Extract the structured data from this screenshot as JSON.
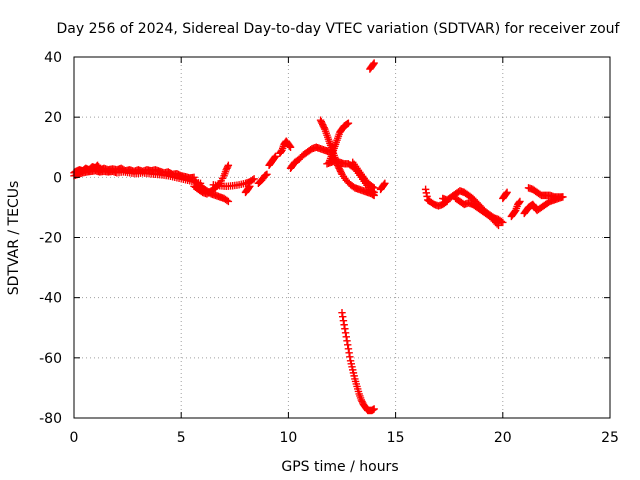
{
  "chart_data": {
    "type": "scatter",
    "title": "Day 256 of 2024, Sidereal Day-to-day VTEC variation (SDTVAR) for receiver zouf",
    "xlabel": "GPS time / hours",
    "ylabel": "SDTVAR / TECUs",
    "xlim": [
      0,
      25
    ],
    "ylim": [
      -80,
      40
    ],
    "xticks": [
      0,
      5,
      10,
      15,
      20,
      25
    ],
    "yticks": [
      -80,
      -60,
      -40,
      -20,
      0,
      20,
      40
    ],
    "xtick_labels": [
      "0",
      "5",
      "10",
      "15",
      "20",
      "25"
    ],
    "ytick_labels": [
      "-80",
      "-60",
      "-40",
      "-20",
      "0",
      "20",
      "40"
    ],
    "grid": true,
    "marker": "+",
    "color": "#ff0000",
    "series": [
      {
        "name": "arc-main",
        "points": [
          [
            0.0,
            1.5
          ],
          [
            0.1,
            2.0
          ],
          [
            0.25,
            2.5
          ],
          [
            0.4,
            2.2
          ],
          [
            0.55,
            3.0
          ],
          [
            0.7,
            2.5
          ],
          [
            0.85,
            3.5
          ],
          [
            1.0,
            3.2
          ],
          [
            1.1,
            4.0
          ],
          [
            1.25,
            2.5
          ],
          [
            1.4,
            3.0
          ],
          [
            1.6,
            2.5
          ],
          [
            1.8,
            2.8
          ],
          [
            2.0,
            2.5
          ],
          [
            2.2,
            3.0
          ],
          [
            2.4,
            2.2
          ],
          [
            2.6,
            2.5
          ],
          [
            2.8,
            2.0
          ],
          [
            3.0,
            2.5
          ],
          [
            3.2,
            2.0
          ],
          [
            3.4,
            2.5
          ],
          [
            3.6,
            2.2
          ],
          [
            3.8,
            2.5
          ],
          [
            4.0,
            2.0
          ],
          [
            4.2,
            1.5
          ],
          [
            4.4,
            1.8
          ],
          [
            4.6,
            1.0
          ],
          [
            4.8,
            1.2
          ],
          [
            5.0,
            0.5
          ],
          [
            5.2,
            0.2
          ],
          [
            5.4,
            -0.2
          ],
          [
            5.6,
            0.0
          ]
        ]
      },
      {
        "name": "arc-main-lower",
        "points": [
          [
            0.0,
            0.5
          ],
          [
            0.2,
            1.0
          ],
          [
            0.4,
            1.5
          ],
          [
            0.6,
            1.8
          ],
          [
            0.8,
            2.0
          ],
          [
            1.0,
            2.2
          ],
          [
            1.2,
            1.8
          ],
          [
            1.4,
            2.0
          ],
          [
            1.6,
            1.8
          ],
          [
            1.8,
            2.0
          ],
          [
            2.0,
            1.5
          ],
          [
            2.3,
            1.8
          ],
          [
            2.6,
            1.5
          ],
          [
            2.9,
            1.2
          ],
          [
            3.2,
            1.5
          ],
          [
            3.5,
            1.2
          ],
          [
            3.8,
            1.0
          ],
          [
            4.1,
            0.8
          ],
          [
            4.4,
            0.5
          ],
          [
            4.7,
            0.0
          ],
          [
            5.0,
            -0.5
          ],
          [
            5.3,
            -1.0
          ],
          [
            5.6,
            -1.5
          ],
          [
            5.9,
            -2.0
          ]
        ]
      },
      {
        "name": "arc-dip-6h",
        "points": [
          [
            5.6,
            -1.0
          ],
          [
            5.8,
            -2.5
          ],
          [
            6.0,
            -3.5
          ],
          [
            6.2,
            -4.5
          ],
          [
            6.4,
            -5.5
          ],
          [
            6.6,
            -6.0
          ],
          [
            6.8,
            -6.5
          ],
          [
            7.0,
            -7.0
          ],
          [
            7.2,
            -8.0
          ]
        ]
      },
      {
        "name": "arc-7h",
        "points": [
          [
            5.6,
            -3.0
          ],
          [
            5.8,
            -4.0
          ],
          [
            6.0,
            -5.0
          ],
          [
            6.2,
            -5.5
          ],
          [
            6.4,
            -4.5
          ],
          [
            6.6,
            -3.5
          ],
          [
            6.8,
            -2.0
          ],
          [
            7.0,
            0.5
          ],
          [
            7.1,
            2.5
          ],
          [
            7.2,
            4.0
          ]
        ]
      },
      {
        "name": "arc-8h",
        "points": [
          [
            6.5,
            -2.5
          ],
          [
            6.8,
            -2.8
          ],
          [
            7.1,
            -3.0
          ],
          [
            7.4,
            -2.8
          ],
          [
            7.7,
            -2.5
          ],
          [
            8.0,
            -2.0
          ],
          [
            8.2,
            -1.5
          ],
          [
            8.4,
            -0.5
          ]
        ]
      },
      {
        "name": "arc-8h-b",
        "points": [
          [
            8.0,
            -5.0
          ],
          [
            8.1,
            -4.0
          ],
          [
            8.2,
            -3.0
          ]
        ]
      },
      {
        "name": "arc-8.7h",
        "points": [
          [
            8.6,
            -2.0
          ],
          [
            8.75,
            -1.0
          ],
          [
            8.9,
            0.5
          ],
          [
            9.0,
            1.0
          ]
        ]
      },
      {
        "name": "arc-9h",
        "points": [
          [
            9.1,
            4.0
          ],
          [
            9.2,
            5.0
          ],
          [
            9.3,
            6.0
          ],
          [
            9.4,
            7.0
          ]
        ]
      },
      {
        "name": "arc-10h",
        "points": [
          [
            9.6,
            8.0
          ],
          [
            9.7,
            9.0
          ],
          [
            9.8,
            11.0
          ],
          [
            9.9,
            12.0
          ],
          [
            10.0,
            11.0
          ],
          [
            10.1,
            10.0
          ]
        ]
      },
      {
        "name": "arc-10-11h",
        "points": [
          [
            10.1,
            3.0
          ],
          [
            10.2,
            4.0
          ],
          [
            10.3,
            5.0
          ],
          [
            10.5,
            6.0
          ],
          [
            10.7,
            7.5
          ],
          [
            10.9,
            8.5
          ],
          [
            11.1,
            9.5
          ],
          [
            11.3,
            10.0
          ],
          [
            11.5,
            9.5
          ],
          [
            11.7,
            9.0
          ],
          [
            11.9,
            8.5
          ]
        ]
      },
      {
        "name": "arc-spike-11.5h",
        "points": [
          [
            11.5,
            19.0
          ],
          [
            11.6,
            17.5
          ],
          [
            11.7,
            16.0
          ],
          [
            11.8,
            14.0
          ],
          [
            11.9,
            12.0
          ],
          [
            12.0,
            10.0
          ],
          [
            12.1,
            8.0
          ],
          [
            12.2,
            6.0
          ],
          [
            12.3,
            4.0
          ],
          [
            12.4,
            2.5
          ],
          [
            12.5,
            1.0
          ],
          [
            12.7,
            -1.0
          ],
          [
            12.9,
            -2.5
          ],
          [
            13.1,
            -3.5
          ],
          [
            13.3,
            -4.0
          ],
          [
            13.5,
            -4.5
          ],
          [
            13.7,
            -5.0
          ],
          [
            13.9,
            -5.5
          ],
          [
            14.0,
            -6.0
          ]
        ]
      },
      {
        "name": "arc-12-13h",
        "points": [
          [
            11.9,
            5.0
          ],
          [
            12.0,
            7.0
          ],
          [
            12.1,
            9.0
          ],
          [
            12.2,
            11.0
          ],
          [
            12.3,
            13.0
          ],
          [
            12.4,
            15.0
          ],
          [
            12.5,
            16.0
          ],
          [
            12.6,
            17.0
          ],
          [
            12.7,
            17.5
          ],
          [
            12.8,
            18.0
          ]
        ]
      },
      {
        "name": "arc-12.5h",
        "points": [
          [
            11.8,
            4.5
          ],
          [
            12.0,
            5.0
          ],
          [
            12.2,
            5.5
          ],
          [
            12.4,
            5.0
          ],
          [
            12.6,
            4.5
          ],
          [
            12.8,
            4.5
          ],
          [
            13.0,
            3.5
          ],
          [
            13.2,
            2.0
          ],
          [
            13.4,
            0.0
          ],
          [
            13.6,
            -2.0
          ],
          [
            13.8,
            -4.0
          ],
          [
            14.0,
            -5.0
          ]
        ]
      },
      {
        "name": "arc-13-14h",
        "points": [
          [
            13.0,
            5.0
          ],
          [
            13.2,
            3.0
          ],
          [
            13.4,
            1.0
          ],
          [
            13.6,
            -1.0
          ],
          [
            13.8,
            -2.5
          ],
          [
            14.0,
            -3.5
          ]
        ]
      },
      {
        "name": "arc-13.8h",
        "points": [
          [
            13.8,
            36.0
          ],
          [
            13.9,
            37.0
          ],
          [
            14.0,
            38.0
          ]
        ]
      },
      {
        "name": "arc-14.5h",
        "points": [
          [
            14.3,
            -4.0
          ],
          [
            14.4,
            -3.0
          ],
          [
            14.5,
            -2.0
          ]
        ]
      },
      {
        "name": "arc-deep-dip",
        "points": [
          [
            12.5,
            -45.0
          ],
          [
            12.6,
            -49.0
          ],
          [
            12.7,
            -53.0
          ],
          [
            12.8,
            -57.0
          ],
          [
            12.9,
            -61.0
          ],
          [
            13.0,
            -64.0
          ],
          [
            13.1,
            -67.0
          ],
          [
            13.2,
            -69.5
          ],
          [
            13.3,
            -72.0
          ],
          [
            13.4,
            -74.0
          ],
          [
            13.5,
            -75.5
          ],
          [
            13.6,
            -76.5
          ],
          [
            13.7,
            -77.5
          ],
          [
            13.8,
            -77.5
          ],
          [
            13.9,
            -77.5
          ],
          [
            14.0,
            -77.0
          ]
        ]
      },
      {
        "name": "arc-16.5h",
        "points": [
          [
            16.4,
            -4.0
          ],
          [
            16.5,
            -7.5
          ],
          [
            16.6,
            -8.0
          ],
          [
            16.8,
            -9.0
          ],
          [
            17.0,
            -9.5
          ],
          [
            17.2,
            -9.0
          ],
          [
            17.4,
            -8.0
          ]
        ]
      },
      {
        "name": "arc-18h",
        "points": [
          [
            17.2,
            -7.0
          ],
          [
            17.4,
            -7.5
          ],
          [
            17.6,
            -6.5
          ],
          [
            17.8,
            -5.5
          ],
          [
            18.0,
            -4.5
          ],
          [
            18.2,
            -5.0
          ],
          [
            18.4,
            -6.0
          ],
          [
            18.6,
            -7.0
          ],
          [
            18.8,
            -8.5
          ],
          [
            19.0,
            -10.0
          ],
          [
            19.2,
            -11.5
          ],
          [
            19.4,
            -12.5
          ],
          [
            19.6,
            -13.5
          ],
          [
            19.8,
            -14.0
          ],
          [
            20.0,
            -15.0
          ]
        ]
      },
      {
        "name": "arc-18.5h-b",
        "points": [
          [
            17.8,
            -7.0
          ],
          [
            18.0,
            -8.0
          ],
          [
            18.2,
            -9.0
          ],
          [
            18.4,
            -8.5
          ],
          [
            18.6,
            -9.0
          ],
          [
            18.8,
            -10.0
          ],
          [
            19.0,
            -11.0
          ],
          [
            19.2,
            -12.0
          ],
          [
            19.4,
            -13.0
          ],
          [
            19.6,
            -14.5
          ],
          [
            19.8,
            -16.0
          ]
        ]
      },
      {
        "name": "arc-20h",
        "points": [
          [
            20.0,
            -7.0
          ],
          [
            20.1,
            -6.0
          ],
          [
            20.2,
            -5.0
          ]
        ]
      },
      {
        "name": "arc-20.5h",
        "points": [
          [
            20.4,
            -13.0
          ],
          [
            20.5,
            -12.0
          ],
          [
            20.6,
            -11.0
          ],
          [
            20.7,
            -9.0
          ],
          [
            20.8,
            -8.0
          ]
        ]
      },
      {
        "name": "arc-21h",
        "points": [
          [
            21.0,
            -12.0
          ],
          [
            21.1,
            -11.0
          ],
          [
            21.2,
            -10.0
          ],
          [
            21.3,
            -9.5
          ],
          [
            21.4,
            -9.0
          ],
          [
            21.5,
            -10.0
          ],
          [
            21.6,
            -11.0
          ],
          [
            21.8,
            -10.0
          ],
          [
            22.0,
            -9.0
          ],
          [
            22.2,
            -8.0
          ],
          [
            22.4,
            -7.5
          ],
          [
            22.6,
            -7.0
          ],
          [
            22.8,
            -6.5
          ]
        ]
      },
      {
        "name": "arc-21.5h",
        "points": [
          [
            21.2,
            -3.5
          ],
          [
            21.4,
            -4.0
          ],
          [
            21.6,
            -5.0
          ],
          [
            21.8,
            -6.0
          ],
          [
            22.0,
            -6.0
          ],
          [
            22.2,
            -6.0
          ],
          [
            22.4,
            -6.5
          ],
          [
            22.6,
            -6.5
          ],
          [
            22.8,
            -6.5
          ]
        ]
      }
    ]
  }
}
